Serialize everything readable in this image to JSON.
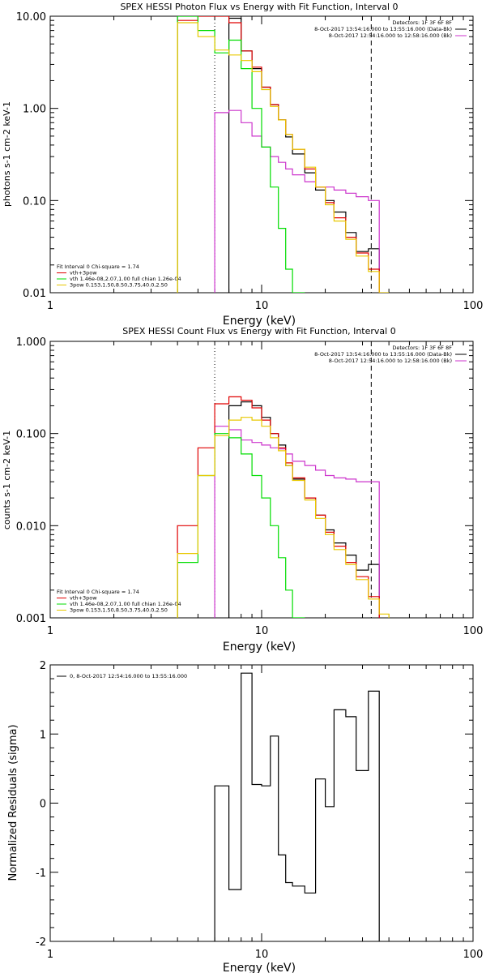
{
  "chart_data": [
    {
      "type": "line",
      "title": "SPEX HESSI Photon Flux vs Energy with Fit Function, Interval 0",
      "xlabel": "Energy (keV)",
      "ylabel": "photons s-1 cm-2 keV-1",
      "xscale": "log",
      "yscale": "log",
      "xlim": [
        1,
        100
      ],
      "ylim": [
        0.01,
        10
      ],
      "x_ticks": [
        "1",
        "10",
        "100"
      ],
      "y_ticks": [
        "0.01",
        "0.10",
        "1.00",
        "10.00"
      ],
      "legend_topright": [
        {
          "text": "Detectors: 1F 3F 6F 8F",
          "color": null
        },
        {
          "text": "8-Oct-2017 13:54:16.000 to 13:55:16.000 (Data-Bk)",
          "color": "#000000"
        },
        {
          "text": "8-Oct-2017 12:54:16.000 to 12:58:16.000 (Bk)",
          "color": "#cc33cc"
        }
      ],
      "legend_bottomleft": [
        {
          "text": "Fit Interval  0    Chi-square = 1.74",
          "color": null
        },
        {
          "text": "vth+3pow",
          "color": "#e00000"
        },
        {
          "text": "vth 1.46e-08,2.07,1.00   full chian 1.26e-04",
          "color": "#00dd00"
        },
        {
          "text": "3pow 0.153,1.50,8.50,3.75,40.0,2.50",
          "color": "#e8c800"
        }
      ],
      "vlines": [
        {
          "x": 6.0,
          "style": "dotted",
          "color": "#000000"
        },
        {
          "x": 33.0,
          "style": "dashed",
          "color": "#000000"
        }
      ],
      "bin_edges": [
        4,
        5,
        6,
        7,
        8,
        9,
        10,
        11,
        12,
        13,
        14,
        16,
        18,
        20,
        22,
        25,
        28,
        32,
        36,
        40
      ],
      "series": [
        {
          "name": "Data-Bk",
          "color": "#000000",
          "values": [
            null,
            null,
            null,
            9.5,
            4.2,
            2.7,
            1.7,
            1.1,
            0.75,
            0.49,
            0.32,
            0.2,
            0.13,
            0.1,
            0.075,
            0.045,
            0.028,
            0.03,
            null
          ]
        },
        {
          "name": "Bk",
          "color": "#cc33cc",
          "values": [
            null,
            null,
            0.9,
            0.95,
            0.7,
            0.5,
            0.38,
            0.3,
            0.26,
            0.22,
            0.19,
            0.16,
            0.14,
            0.14,
            0.13,
            0.12,
            0.11,
            0.1,
            null
          ]
        },
        {
          "name": "vth+3pow",
          "color": "#e00000",
          "values": [
            9.0,
            10.0,
            10.0,
            8.5,
            4.2,
            2.8,
            1.7,
            1.1,
            0.75,
            0.52,
            0.36,
            0.22,
            0.14,
            0.095,
            0.065,
            0.04,
            0.027,
            0.018,
            null
          ]
        },
        {
          "name": "vth",
          "color": "#00dd00",
          "values": [
            10.0,
            7.0,
            4.0,
            5.5,
            2.7,
            1.0,
            0.38,
            0.14,
            0.05,
            0.018,
            0.007,
            null,
            null,
            null,
            null,
            null,
            null,
            null,
            null
          ]
        },
        {
          "name": "3pow",
          "color": "#e8c800",
          "values": [
            8.5,
            6.0,
            4.3,
            3.8,
            3.3,
            2.5,
            1.6,
            1.05,
            0.75,
            0.52,
            0.36,
            0.23,
            0.14,
            0.09,
            0.06,
            0.038,
            0.025,
            0.017,
            0.01
          ]
        }
      ]
    },
    {
      "type": "line",
      "title": "SPEX HESSI Count Flux vs Energy with Fit Function, Interval 0",
      "xlabel": "Energy (keV)",
      "ylabel": "counts s-1 cm-2 keV-1",
      "xscale": "log",
      "yscale": "log",
      "xlim": [
        1,
        100
      ],
      "ylim": [
        0.001,
        1
      ],
      "x_ticks": [
        "1",
        "10",
        "100"
      ],
      "y_ticks": [
        "0.001",
        "0.010",
        "0.100",
        "1.000"
      ],
      "legend_topright": [
        {
          "text": "Detectors: 1F 3F 6F 8F",
          "color": null
        },
        {
          "text": "8-Oct-2017 13:54:16.000 to 13:55:16.000 (Data-Bk)",
          "color": "#000000"
        },
        {
          "text": "8-Oct-2017 12:54:16.000 to 12:58:16.000 (Bk)",
          "color": "#cc33cc"
        }
      ],
      "legend_bottomleft": [
        {
          "text": "Fit Interval  0    Chi-square = 1.74",
          "color": null
        },
        {
          "text": "vth+3pow",
          "color": "#e00000"
        },
        {
          "text": "vth 1.46e-08,2.07,1.00   full chian 1.26e-04",
          "color": "#00dd00"
        },
        {
          "text": "3pow 0.153,1.50,8.50,3.75,40.0,2.50",
          "color": "#e8c800"
        }
      ],
      "vlines": [
        {
          "x": 6.0,
          "style": "dotted",
          "color": "#000000"
        },
        {
          "x": 33.0,
          "style": "dashed",
          "color": "#000000"
        }
      ],
      "bin_edges": [
        4,
        5,
        6,
        7,
        8,
        9,
        10,
        11,
        12,
        13,
        14,
        16,
        18,
        20,
        22,
        25,
        28,
        32,
        36,
        40
      ],
      "series": [
        {
          "name": "Data-Bk",
          "color": "#000000",
          "values": [
            null,
            null,
            null,
            0.2,
            0.22,
            0.2,
            0.15,
            0.1,
            0.075,
            0.045,
            0.032,
            0.02,
            0.013,
            0.009,
            0.0065,
            0.0048,
            0.0033,
            0.0038,
            null
          ]
        },
        {
          "name": "Bk",
          "color": "#cc33cc",
          "values": [
            null,
            null,
            0.12,
            0.11,
            0.085,
            0.08,
            0.075,
            0.07,
            0.068,
            0.06,
            0.05,
            0.045,
            0.04,
            0.035,
            0.033,
            0.032,
            0.03,
            0.03,
            null
          ]
        },
        {
          "name": "vth+3pow",
          "color": "#e00000",
          "values": [
            0.01,
            0.07,
            0.21,
            0.25,
            0.23,
            0.19,
            0.14,
            0.1,
            0.07,
            0.048,
            0.033,
            0.02,
            0.013,
            0.0085,
            0.006,
            0.004,
            0.0028,
            0.0017,
            null
          ]
        },
        {
          "name": "vth",
          "color": "#00dd00",
          "values": [
            0.004,
            0.035,
            0.1,
            0.09,
            0.06,
            0.035,
            0.02,
            0.01,
            0.0045,
            0.002,
            0.0009,
            null,
            null,
            null,
            null,
            null,
            null,
            null,
            null
          ]
        },
        {
          "name": "3pow",
          "color": "#e8c800",
          "values": [
            0.005,
            0.035,
            0.095,
            0.14,
            0.15,
            0.14,
            0.12,
            0.09,
            0.065,
            0.045,
            0.031,
            0.019,
            0.012,
            0.008,
            0.0055,
            0.0038,
            0.0026,
            0.0016,
            0.0011
          ]
        }
      ]
    },
    {
      "type": "line",
      "title": "",
      "xlabel": "Energy (keV)",
      "ylabel": "Normalized Residuals (sigma)",
      "xscale": "log",
      "yscale": "linear",
      "xlim": [
        1,
        100
      ],
      "ylim": [
        -2,
        2
      ],
      "x_ticks": [
        "1",
        "10",
        "100"
      ],
      "y_ticks": [
        "-2",
        "-1",
        "0",
        "1",
        "2"
      ],
      "legend": [
        "0,  8-Oct-2017 12:54:16.000 to 13:55:16.000"
      ],
      "bin_edges": [
        6,
        7,
        8,
        9,
        10,
        11,
        12,
        13,
        14,
        16,
        18,
        20,
        22,
        25,
        28,
        32,
        36
      ],
      "values": [
        0.25,
        -1.25,
        1.88,
        0.27,
        0.25,
        0.97,
        -0.75,
        -1.15,
        -1.2,
        -1.3,
        0.35,
        -0.05,
        1.35,
        1.25,
        0.47,
        1.62
      ]
    }
  ]
}
